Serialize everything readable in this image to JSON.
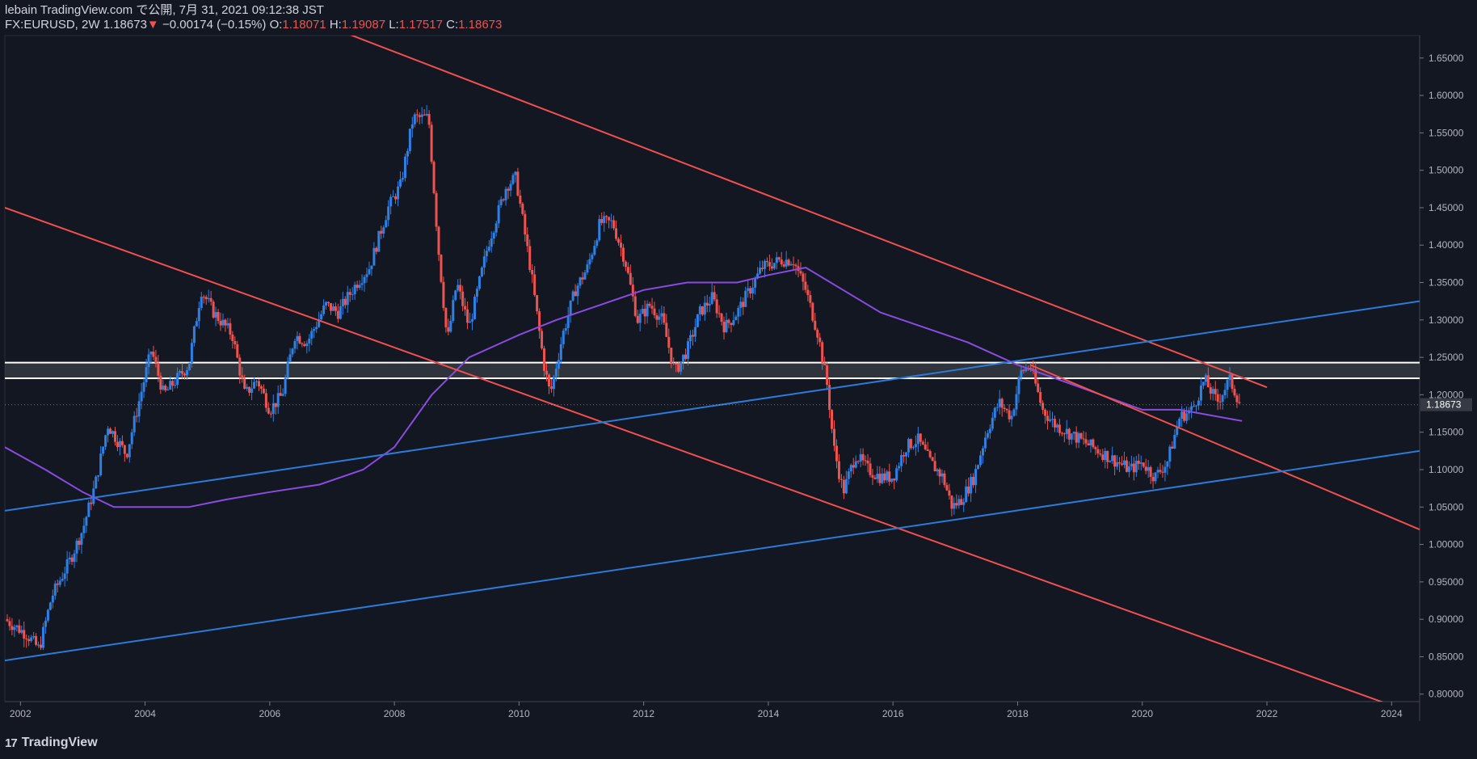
{
  "header": {
    "publish_line": "lebain TradingView.com で公開, 7月 31, 2021 09:12:38 JST",
    "symbol": "FX:EURUSD, 2W",
    "last": "1.18673",
    "change_arrow": "▼",
    "change": "−0.00174 (−0.15%)",
    "o_label": "O:",
    "o_value": "1.18071",
    "h_label": "H:",
    "h_value": "1.19087",
    "l_label": "L:",
    "l_value": "1.17517",
    "c_label": "C:",
    "c_value": "1.18673"
  },
  "footer": {
    "brand": "TradingView",
    "logo": "17"
  },
  "price_badge": "1.18673",
  "colors": {
    "bg": "#131722",
    "up": "#2f80e4",
    "down": "#ef5350",
    "trend_red": "#f05050",
    "trend_blue": "#2b7bd9",
    "ma": "#8a4be0",
    "zone": "#3a3d46",
    "grid": "#1c2030"
  },
  "chart_data": {
    "type": "candlestick",
    "title": "FX:EURUSD 2W",
    "x_ticks": [
      "2002",
      "2004",
      "2006",
      "2008",
      "2010",
      "2012",
      "2014",
      "2016",
      "2018",
      "2020",
      "2022",
      "2024"
    ],
    "y_ticks": [
      "0.80000",
      "0.85000",
      "0.90000",
      "0.95000",
      "1.00000",
      "1.05000",
      "1.10000",
      "1.15000",
      "1.20000",
      "1.25000",
      "1.30000",
      "1.35000",
      "1.40000",
      "1.45000",
      "1.50000",
      "1.55000",
      "1.60000",
      "1.65000"
    ],
    "x_range": [
      2001.75,
      2024.45
    ],
    "y_range": [
      0.79,
      1.68
    ],
    "close_path": [
      [
        2001.75,
        0.9
      ],
      [
        2002.1,
        0.88
      ],
      [
        2002.3,
        0.86
      ],
      [
        2002.5,
        0.93
      ],
      [
        2002.8,
        0.98
      ],
      [
        2003.0,
        1.02
      ],
      [
        2003.2,
        1.08
      ],
      [
        2003.4,
        1.16
      ],
      [
        2003.7,
        1.12
      ],
      [
        2003.9,
        1.19
      ],
      [
        2004.1,
        1.26
      ],
      [
        2004.3,
        1.2
      ],
      [
        2004.5,
        1.22
      ],
      [
        2004.7,
        1.24
      ],
      [
        2004.9,
        1.34
      ],
      [
        2005.1,
        1.31
      ],
      [
        2005.4,
        1.28
      ],
      [
        2005.6,
        1.2
      ],
      [
        2005.8,
        1.22
      ],
      [
        2006.0,
        1.18
      ],
      [
        2006.2,
        1.2
      ],
      [
        2006.4,
        1.28
      ],
      [
        2006.6,
        1.27
      ],
      [
        2006.9,
        1.32
      ],
      [
        2007.1,
        1.31
      ],
      [
        2007.4,
        1.35
      ],
      [
        2007.6,
        1.37
      ],
      [
        2007.9,
        1.45
      ],
      [
        2008.1,
        1.48
      ],
      [
        2008.3,
        1.57
      ],
      [
        2008.55,
        1.57
      ],
      [
        2008.7,
        1.4
      ],
      [
        2008.85,
        1.27
      ],
      [
        2009.0,
        1.35
      ],
      [
        2009.2,
        1.29
      ],
      [
        2009.5,
        1.4
      ],
      [
        2009.8,
        1.48
      ],
      [
        2009.95,
        1.49
      ],
      [
        2010.2,
        1.36
      ],
      [
        2010.4,
        1.24
      ],
      [
        2010.5,
        1.2
      ],
      [
        2010.7,
        1.28
      ],
      [
        2010.9,
        1.34
      ],
      [
        2011.1,
        1.37
      ],
      [
        2011.3,
        1.43
      ],
      [
        2011.5,
        1.43
      ],
      [
        2011.7,
        1.38
      ],
      [
        2011.9,
        1.3
      ],
      [
        2012.1,
        1.32
      ],
      [
        2012.3,
        1.3
      ],
      [
        2012.5,
        1.23
      ],
      [
        2012.7,
        1.26
      ],
      [
        2012.9,
        1.31
      ],
      [
        2013.1,
        1.33
      ],
      [
        2013.3,
        1.29
      ],
      [
        2013.5,
        1.31
      ],
      [
        2013.7,
        1.34
      ],
      [
        2013.9,
        1.37
      ],
      [
        2014.2,
        1.38
      ],
      [
        2014.4,
        1.38
      ],
      [
        2014.6,
        1.34
      ],
      [
        2014.8,
        1.28
      ],
      [
        2014.95,
        1.21
      ],
      [
        2015.05,
        1.13
      ],
      [
        2015.2,
        1.07
      ],
      [
        2015.4,
        1.12
      ],
      [
        2015.6,
        1.1
      ],
      [
        2015.8,
        1.09
      ],
      [
        2016.0,
        1.09
      ],
      [
        2016.2,
        1.13
      ],
      [
        2016.4,
        1.14
      ],
      [
        2016.6,
        1.11
      ],
      [
        2016.8,
        1.09
      ],
      [
        2016.95,
        1.05
      ],
      [
        2017.1,
        1.06
      ],
      [
        2017.3,
        1.09
      ],
      [
        2017.5,
        1.15
      ],
      [
        2017.7,
        1.19
      ],
      [
        2017.9,
        1.17
      ],
      [
        2018.05,
        1.23
      ],
      [
        2018.2,
        1.24
      ],
      [
        2018.4,
        1.18
      ],
      [
        2018.6,
        1.16
      ],
      [
        2018.8,
        1.15
      ],
      [
        2019.0,
        1.14
      ],
      [
        2019.2,
        1.13
      ],
      [
        2019.4,
        1.12
      ],
      [
        2019.6,
        1.11
      ],
      [
        2019.8,
        1.1
      ],
      [
        2020.0,
        1.11
      ],
      [
        2020.2,
        1.09
      ],
      [
        2020.4,
        1.11
      ],
      [
        2020.6,
        1.17
      ],
      [
        2020.8,
        1.18
      ],
      [
        2021.0,
        1.22
      ],
      [
        2021.2,
        1.19
      ],
      [
        2021.4,
        1.22
      ],
      [
        2021.58,
        1.18673
      ]
    ],
    "moving_average": [
      [
        2001.75,
        1.13
      ],
      [
        2002.4,
        1.1
      ],
      [
        2003.0,
        1.07
      ],
      [
        2003.5,
        1.05
      ],
      [
        2004.0,
        1.05
      ],
      [
        2004.7,
        1.05
      ],
      [
        2005.3,
        1.06
      ],
      [
        2006.0,
        1.07
      ],
      [
        2006.8,
        1.08
      ],
      [
        2007.5,
        1.1
      ],
      [
        2008.0,
        1.13
      ],
      [
        2008.6,
        1.2
      ],
      [
        2009.2,
        1.25
      ],
      [
        2010.0,
        1.28
      ],
      [
        2010.6,
        1.3
      ],
      [
        2011.3,
        1.32
      ],
      [
        2012.0,
        1.34
      ],
      [
        2012.7,
        1.35
      ],
      [
        2013.5,
        1.35
      ],
      [
        2014.0,
        1.36
      ],
      [
        2014.6,
        1.37
      ],
      [
        2015.2,
        1.34
      ],
      [
        2015.8,
        1.31
      ],
      [
        2016.5,
        1.29
      ],
      [
        2017.2,
        1.27
      ],
      [
        2018.0,
        1.24
      ],
      [
        2019.0,
        1.21
      ],
      [
        2020.0,
        1.18
      ],
      [
        2020.6,
        1.18
      ],
      [
        2021.6,
        1.165
      ]
    ],
    "trendlines": [
      {
        "name": "red-upper",
        "color": "red",
        "from": [
          2006.7,
          1.7
        ],
        "to": [
          2022.0,
          1.21
        ]
      },
      {
        "name": "red-lower",
        "color": "red",
        "from": [
          2001.75,
          1.45
        ],
        "to": [
          2024.0,
          0.785
        ]
      },
      {
        "name": "red-mid-extension",
        "color": "red",
        "from": [
          2018.2,
          1.24
        ],
        "to": [
          2024.45,
          1.02
        ]
      },
      {
        "name": "blue-upper",
        "color": "blue",
        "from": [
          2001.75,
          1.045
        ],
        "to": [
          2024.45,
          1.325
        ]
      },
      {
        "name": "blue-lower",
        "color": "blue",
        "from": [
          2001.75,
          0.845
        ],
        "to": [
          2024.45,
          1.125
        ]
      }
    ],
    "resistance_zone": {
      "top": 1.243,
      "bottom": 1.222
    },
    "last_price": 1.18673
  }
}
